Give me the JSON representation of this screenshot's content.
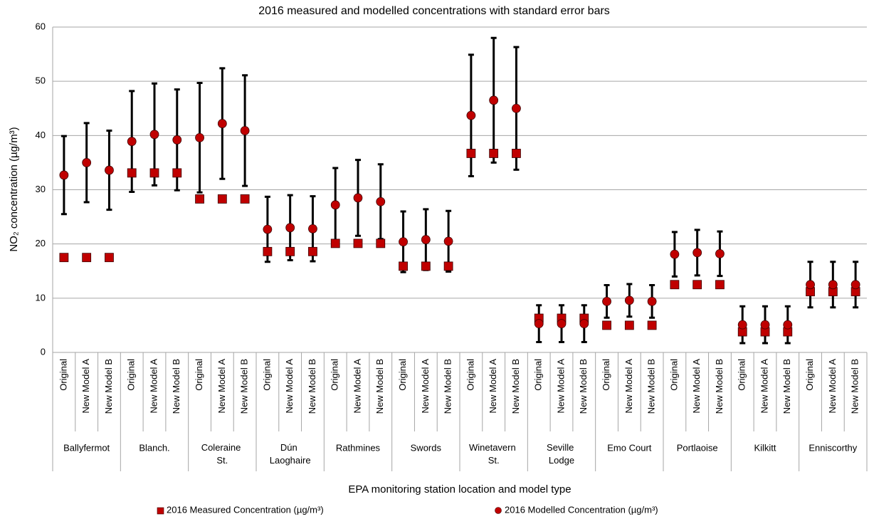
{
  "chart_data": {
    "type": "errorbar",
    "title": "2016 measured and modelled concentrations with standard error bars",
    "y_label": "NO₂ concentration (µg/m³)",
    "x_label": "EPA monitoring station location and model type",
    "groups": [
      "Ballyfermot",
      "Blanch.",
      "Coleraine St.",
      "Dún Laoghaire",
      "Rathmines",
      "Swords",
      "Winetavern St.",
      "Seville Lodge",
      "Emo Court",
      "Portlaoise",
      "Kilkitt",
      "Enniscorthy"
    ],
    "categories": [
      "Original",
      "New Model A",
      "New Model B",
      "Original",
      "New Model A",
      "New Model B",
      "Original",
      "New Model A",
      "New Model B",
      "Original",
      "New Model A",
      "New Model B",
      "Original",
      "New Model A",
      "New Model B",
      "Original",
      "New Model A",
      "New Model B",
      "Original",
      "New Model A",
      "New Model B",
      "Original",
      "New Model A",
      "New Model B",
      "Original",
      "New Model A",
      "New Model B",
      "Original",
      "New Model A",
      "New Model B",
      "Original",
      "New Model A",
      "New Model B",
      "Original",
      "New Model A",
      "New Model B"
    ],
    "series": [
      {
        "name": "2016 Measured Concentration (µg/m³)",
        "color": "#c00000",
        "marker": "square",
        "values": [
          17.5,
          17.5,
          17.5,
          33.1,
          33.1,
          33.1,
          28.3,
          28.3,
          28.3,
          18.6,
          18.6,
          18.6,
          20.1,
          20.1,
          20.1,
          15.9,
          15.9,
          15.9,
          36.7,
          36.7,
          36.7,
          6.3,
          6.3,
          6.3,
          5.0,
          5.0,
          5.0,
          12.5,
          12.5,
          12.5,
          3.8,
          3.8,
          3.8,
          11.2,
          11.2,
          11.2
        ]
      },
      {
        "name": "2016 Modelled Concentration (µg/m³)",
        "color": "#c00000",
        "marker": "circle",
        "values": [
          32.7,
          35.0,
          33.6,
          38.9,
          40.2,
          39.2,
          39.6,
          42.2,
          40.9,
          22.7,
          23.0,
          22.8,
          27.2,
          28.5,
          27.8,
          20.4,
          20.8,
          20.5,
          43.7,
          46.5,
          45.0,
          5.3,
          5.3,
          5.3,
          9.4,
          9.6,
          9.4,
          18.1,
          18.4,
          18.2,
          5.1,
          5.1,
          5.1,
          12.5,
          12.5,
          12.5
        ],
        "errors": [
          7.2,
          7.3,
          7.3,
          9.3,
          9.4,
          9.3,
          10.1,
          10.2,
          10.2,
          6.0,
          6.0,
          6.0,
          6.8,
          7.0,
          6.9,
          5.6,
          5.6,
          5.6,
          11.2,
          11.5,
          11.3,
          3.4,
          3.4,
          3.4,
          3.0,
          3.0,
          3.0,
          4.1,
          4.2,
          4.1,
          3.4,
          3.4,
          3.4,
          4.2,
          4.2,
          4.2
        ]
      }
    ],
    "ylim": [
      0,
      60
    ],
    "yticks": [
      0,
      10,
      20,
      30,
      40,
      50,
      60
    ],
    "grid": true
  }
}
